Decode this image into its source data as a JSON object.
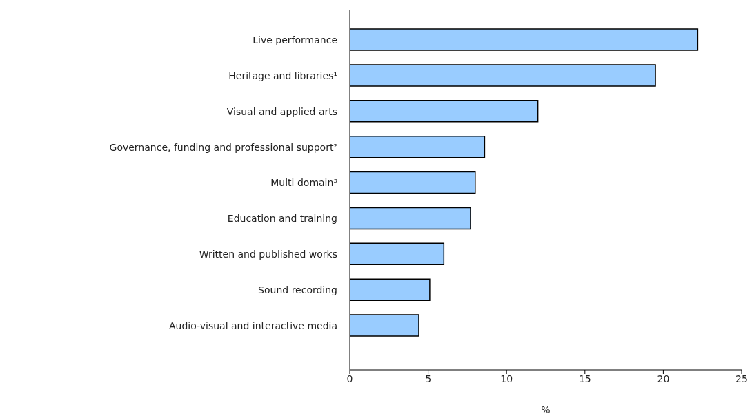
{
  "chart_data": {
    "type": "bar",
    "orientation": "horizontal",
    "xlabel": "%",
    "categories": [
      "Live performance",
      "Heritage and libraries¹",
      "Visual and applied arts",
      "Governance, funding and professional support²",
      "Multi domain³",
      "Education and training",
      "Written and published works",
      "Sound recording",
      "Audio-visual and interactive media"
    ],
    "values": [
      22.2,
      19.5,
      12.0,
      8.6,
      8.0,
      7.7,
      6.0,
      5.1,
      4.4
    ],
    "color": "#99ccff",
    "xlim": [
      0,
      25
    ],
    "xticks": [
      0,
      5,
      10,
      15,
      20,
      25
    ],
    "grid": false,
    "legend": false
  }
}
